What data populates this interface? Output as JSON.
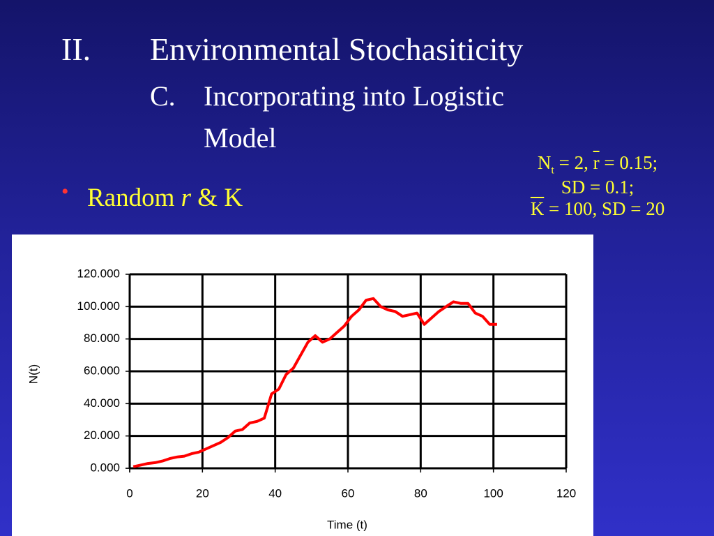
{
  "slide": {
    "title_number": "II.",
    "title": "Environmental Stochasiticity",
    "subtitle_letter": "C.",
    "subtitle_line1": "Incorporating into Logistic",
    "subtitle_line2": "Model",
    "bullet": [
      "Random ",
      "r",
      " & K"
    ],
    "note": {
      "line1": [
        "N",
        "t",
        " = 2, ",
        "r",
        " = 0.15;"
      ],
      "line2": "SD = 0.1;",
      "line3": [
        "K",
        " = 100, SD = 20"
      ]
    }
  },
  "chart_data": {
    "type": "line",
    "x": [
      1,
      3,
      5,
      7,
      9,
      11,
      13,
      15,
      17,
      19,
      21,
      23,
      25,
      27,
      29,
      31,
      33,
      35,
      37,
      39,
      41,
      43,
      45,
      47,
      49,
      51,
      53,
      55,
      57,
      59,
      61,
      63,
      65,
      67,
      69,
      71,
      73,
      75,
      77,
      79,
      81,
      83,
      85,
      87,
      89,
      91,
      93,
      95,
      97,
      99,
      101
    ],
    "values": [
      1,
      2,
      3,
      3.5,
      4.5,
      6,
      7,
      7.5,
      9,
      10,
      12,
      14,
      16,
      19,
      23,
      24,
      28,
      29,
      31,
      46,
      49,
      58,
      62,
      70,
      78,
      82,
      78,
      80,
      84,
      88,
      94,
      98,
      104,
      105,
      100,
      98,
      97,
      94,
      95,
      96,
      89,
      93,
      97,
      100,
      103,
      102,
      102,
      96,
      94,
      89,
      89
    ],
    "color": "#ff0000",
    "xlabel": "Time (t)",
    "ylabel": "N(t)",
    "xlim": [
      0,
      120
    ],
    "xticks": [
      0,
      20,
      40,
      60,
      80,
      100,
      120
    ],
    "ylim": [
      0,
      120
    ],
    "yticks": [
      {
        "value": 0,
        "label": "0.000"
      },
      {
        "value": 20,
        "label": "20.000"
      },
      {
        "value": 40,
        "label": "40.000"
      },
      {
        "value": 60,
        "label": "60.000"
      },
      {
        "value": 80,
        "label": "80.000"
      },
      {
        "value": 100,
        "label": "100.000"
      },
      {
        "value": 120,
        "label": "120.000"
      }
    ],
    "grid": true
  }
}
